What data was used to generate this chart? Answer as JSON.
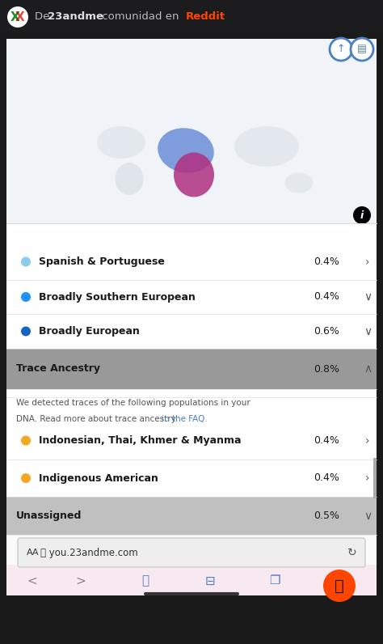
{
  "bg_outer": "#1a1a1a",
  "bg_header": "#1c1c1e",
  "bg_content": "#ffffff",
  "bg_gray_row": "#c8c8c8",
  "bg_bottom_bar": "#f5f0f5",
  "header_text": "De 23andme comunidad en Reddit",
  "header_text_color": "#cccccc",
  "header_bold": "23andme",
  "header_reddit_color": "#ff4500",
  "rows": [
    {
      "label": "Spanish & Portuguese",
      "value": "0.4%",
      "dot_color": "#87CEEB",
      "arrow": ">",
      "bg": "#ffffff"
    },
    {
      "label": "Broadly Southern European",
      "value": "0.4%",
      "dot_color": "#1e90ff",
      "arrow": "v",
      "bg": "#ffffff"
    },
    {
      "label": "Broadly European",
      "value": "0.6%",
      "dot_color": "#1565c0",
      "arrow": "v",
      "bg": "#ffffff"
    },
    {
      "label": "Trace Ancestry",
      "value": "0.8%",
      "dot_color": null,
      "arrow": "^",
      "bg": "#9e9e9e",
      "bold": true
    },
    {
      "label": "Indonesian, Thai, Khmer & Myanma",
      "value": "0.4%",
      "dot_color": "#f5a623",
      "arrow": ">",
      "bg": "#ffffff"
    },
    {
      "label": "Indigenous American",
      "value": "0.4%",
      "dot_color": "#f5a623",
      "arrow": ">",
      "bg": "#ffffff"
    },
    {
      "label": "Unassigned",
      "value": "0.5%",
      "dot_color": null,
      "arrow": "v",
      "bg": "#c8c8c8",
      "bold": true
    }
  ],
  "trace_note": "We detected traces of the following populations in your DNA. Read more about trace ancestry ",
  "trace_link": "in the FAQ.",
  "url_bar": "you.23andme.com",
  "map_bg": "#f0f0f0"
}
